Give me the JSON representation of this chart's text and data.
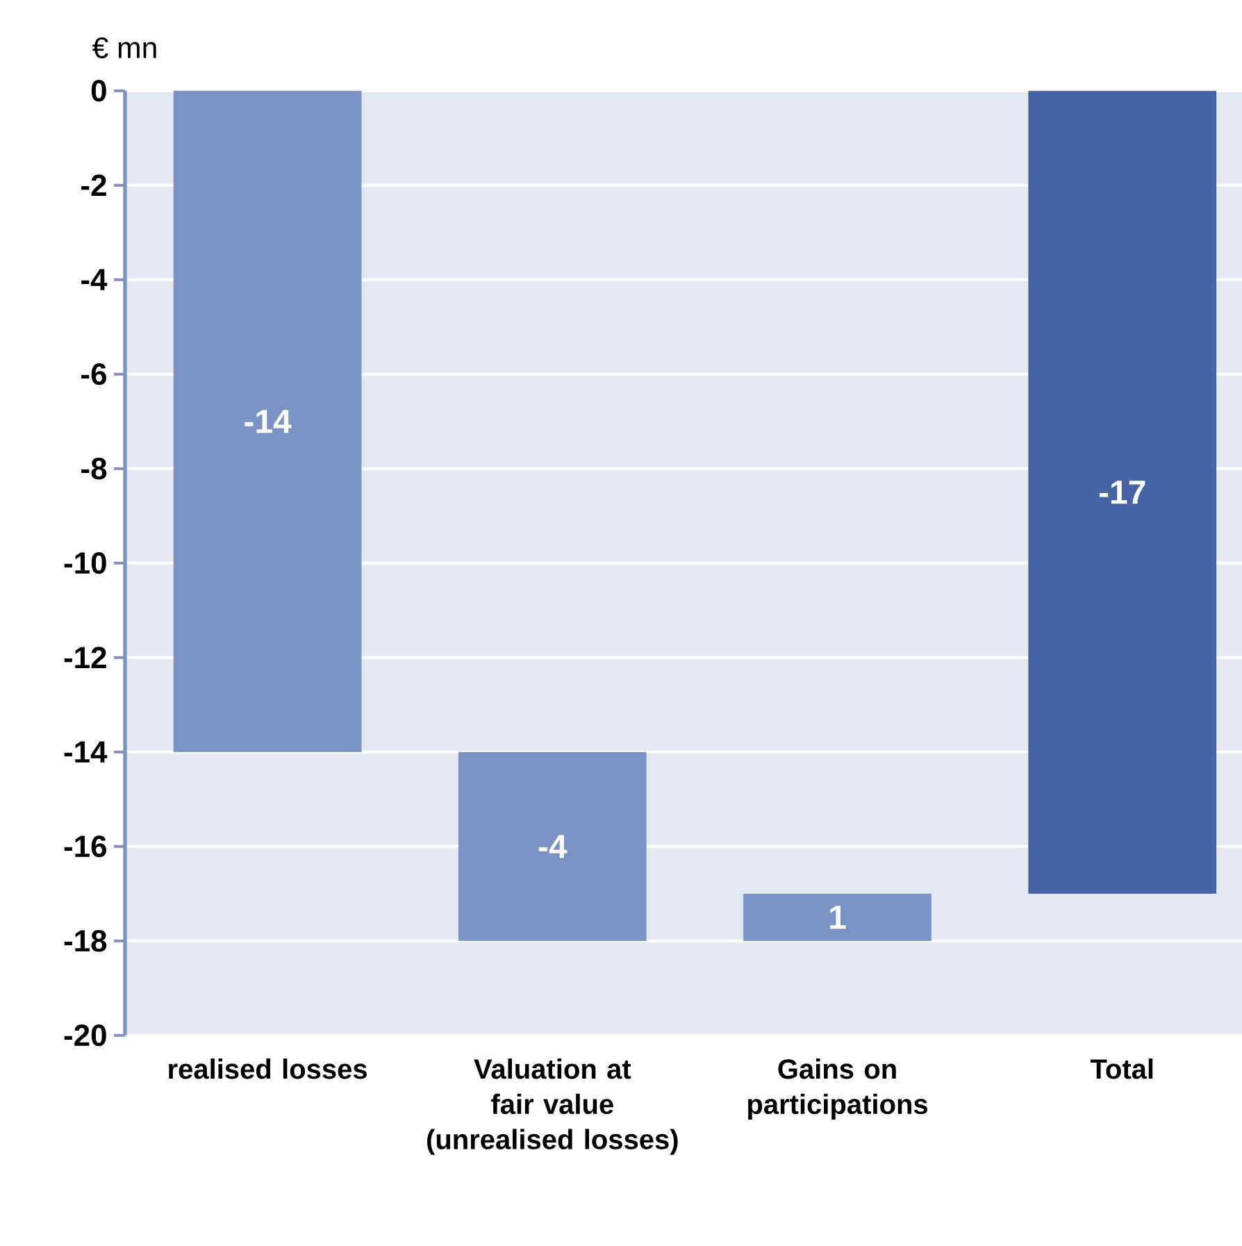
{
  "chart_data": {
    "type": "bar",
    "ylabel": "€ mn",
    "categories": [
      "realised losses",
      "Valuation at fair value (unrealised losses)",
      "Gains on participations",
      "Total"
    ],
    "values": [
      -14,
      -4,
      1,
      -17
    ],
    "base": [
      0,
      -14,
      -18,
      0
    ],
    "colors": [
      "#7b93c4",
      "#7b93c4",
      "#7b93c4",
      "#4464a6"
    ],
    "ylim": [
      -20,
      0
    ],
    "yticks": [
      0,
      -2,
      -4,
      -6,
      -8,
      -10,
      -12,
      -14,
      -16,
      -18,
      -20
    ],
    "grid": "y",
    "data_labels": true
  }
}
